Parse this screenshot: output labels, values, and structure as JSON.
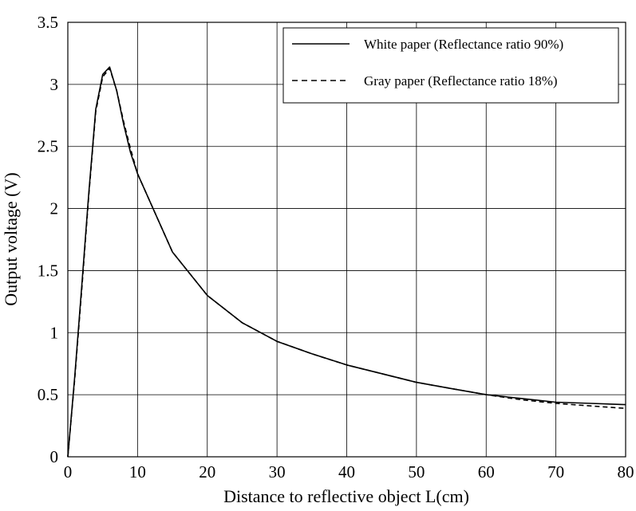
{
  "chart_data": {
    "type": "line",
    "title": "",
    "xlabel": "Distance to reflective object L(cm)",
    "ylabel": "Output voltage (V)",
    "xlim": [
      0,
      80
    ],
    "ylim": [
      0,
      3.5
    ],
    "x_ticks": [
      "0",
      "10",
      "20",
      "30",
      "40",
      "50",
      "60",
      "70",
      "80"
    ],
    "y_ticks": [
      "0",
      "0.5",
      "1",
      "1.5",
      "2",
      "2.5",
      "3",
      "3.5"
    ],
    "grid": true,
    "legend_position": "top-right",
    "series": [
      {
        "name": "White paper (Reflectance ratio 90%)",
        "style": "solid",
        "color": "#000000",
        "x": [
          0,
          1,
          2,
          3,
          4,
          5,
          6,
          7,
          8,
          9,
          10,
          15,
          20,
          25,
          30,
          35,
          40,
          45,
          50,
          55,
          60,
          65,
          70,
          75,
          80
        ],
        "y": [
          0,
          0.65,
          1.38,
          2.12,
          2.8,
          3.08,
          3.14,
          2.95,
          2.68,
          2.45,
          2.28,
          1.65,
          1.3,
          1.08,
          0.93,
          0.83,
          0.74,
          0.67,
          0.6,
          0.55,
          0.5,
          0.47,
          0.44,
          0.43,
          0.42
        ]
      },
      {
        "name": "Gray paper (Reflectance ratio 18%)",
        "style": "dashed",
        "color": "#000000",
        "x": [
          0,
          1,
          2,
          3,
          4,
          5,
          6,
          7,
          8,
          9,
          10,
          15,
          20,
          25,
          30,
          35,
          40,
          45,
          50,
          55,
          60,
          65,
          70,
          75,
          80
        ],
        "y": [
          0,
          0.63,
          1.35,
          2.1,
          2.78,
          3.06,
          3.13,
          2.95,
          2.7,
          2.48,
          2.28,
          1.65,
          1.3,
          1.08,
          0.93,
          0.83,
          0.74,
          0.67,
          0.6,
          0.55,
          0.5,
          0.46,
          0.43,
          0.41,
          0.39
        ]
      }
    ]
  }
}
